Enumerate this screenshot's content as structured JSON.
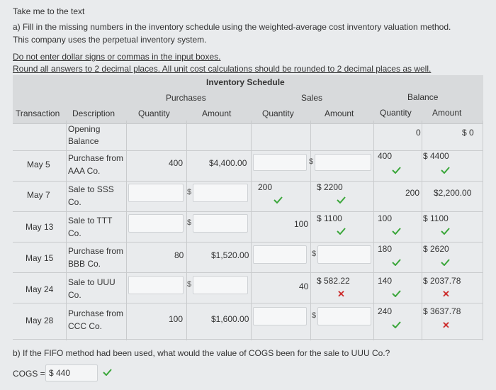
{
  "intro": {
    "link": "Take me to the text",
    "question_a": "a) Fill in the missing numbers in the inventory schedule using the weighted-average cost inventory valuation method.",
    "question_a2": "This company uses the perpetual inventory system.",
    "note1": "Do not enter dollar signs or commas in the input boxes.",
    "note2": "Round all answers to 2 decimal places. All unit cost calculations should be rounded to 2 decimal places as well."
  },
  "table": {
    "title": "Inventory Schedule",
    "groups": {
      "purchases": "Purchases",
      "sales": "Sales",
      "balance": "Balance"
    },
    "cols": {
      "transaction": "Transaction",
      "description": "Description",
      "p_qty": "Quantity",
      "p_amt": "Amount",
      "s_qty": "Quantity",
      "s_amt": "Amount",
      "b_qty": "Quantity",
      "b_amt": "Amount"
    },
    "rows": [
      {
        "date": "",
        "desc1": "Opening",
        "desc2": "Balance",
        "b_qty": "0",
        "b_amt": "$ 0"
      },
      {
        "date": "May 5",
        "desc1": "Purchase from",
        "desc2": "AAA Co.",
        "p_qty": "400",
        "p_amt": "$4,400.00",
        "b_qty": "400",
        "b_amt": "$ 4400"
      },
      {
        "date": "May 7",
        "desc1": "Sale to SSS",
        "desc2": "Co.",
        "s_qty": "200",
        "s_amt": "$ 2200",
        "b_qty": "200",
        "b_amt": "$2,200.00"
      },
      {
        "date": "May 13",
        "desc1": "Sale to TTT",
        "desc2": "Co.",
        "s_qty": "100",
        "s_amt": "$ 1100",
        "b_qty": "100",
        "b_amt": "$ 1100"
      },
      {
        "date": "May 15",
        "desc1": "Purchase from",
        "desc2": "BBB Co.",
        "p_qty": "80",
        "p_amt": "$1,520.00",
        "b_qty": "180",
        "b_amt": "$ 2620"
      },
      {
        "date": "May 24",
        "desc1": "Sale to UUU",
        "desc2": "Co.",
        "s_qty": "40",
        "s_amt": "$ 582.22",
        "b_qty": "140",
        "b_amt": "$ 2037.78"
      },
      {
        "date": "May 28",
        "desc1": "Purchase from",
        "desc2": "CCC Co.",
        "p_qty": "100",
        "p_amt": "$1,600.00",
        "b_qty": "240",
        "b_amt": "$ 3637.78"
      }
    ]
  },
  "dollar_sign": "$",
  "part_b": {
    "question": "b) If the FIFO method had been used, what would the value of COGS been for the sale to UUU Co.?",
    "label": "COGS = ",
    "value": "$ 440"
  },
  "colors": {
    "check": "#3aa63a",
    "cross": "#cc2b2b"
  }
}
